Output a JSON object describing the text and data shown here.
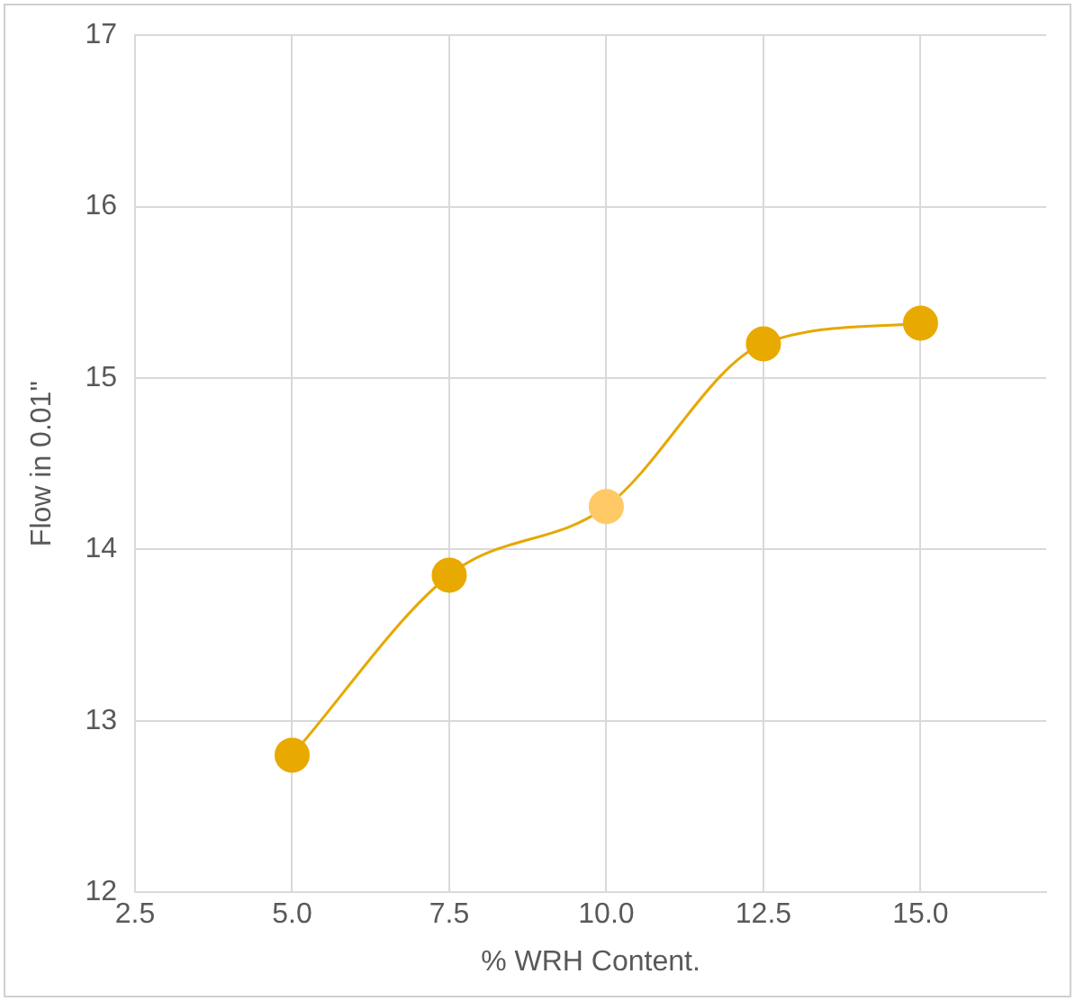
{
  "chart_data": {
    "type": "line",
    "xlabel": "% WRH Content.",
    "ylabel": "Flow in 0.01\"",
    "x": [
      5.0,
      7.5,
      10.0,
      12.5,
      15.0
    ],
    "series": [
      {
        "color": "#e6a800",
        "colors": [
          "#e8a900",
          "#e8a900",
          "#ffc966",
          "#e8a900",
          "#e8a900"
        ],
        "values": [
          12.8,
          13.85,
          14.25,
          15.2,
          15.32
        ]
      }
    ],
    "xlim": [
      2.5,
      17
    ],
    "xticks": [
      {
        "value": 2.5,
        "label": "2.5"
      },
      {
        "value": 5,
        "label": "5.0"
      },
      {
        "value": 7.5,
        "label": "7.5"
      },
      {
        "value": 10,
        "label": "10.0"
      },
      {
        "value": 12.5,
        "label": "12.5"
      },
      {
        "value": 15,
        "label": "15.0"
      }
    ],
    "ylim": [
      12,
      17
    ],
    "yticks": [
      12,
      13,
      14,
      15,
      16,
      17
    ],
    "grid": true,
    "legend": false,
    "marker": "circle",
    "line_style": "solid"
  }
}
